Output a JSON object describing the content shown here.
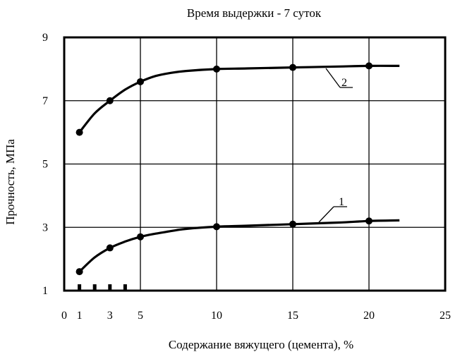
{
  "chart_data": {
    "type": "line",
    "title": "Время выдержки - 7 суток",
    "xlabel": "Содержание вяжущего (цемента),  %",
    "ylabel": "Прочность, МПа",
    "xlim": [
      0,
      25
    ],
    "ylim": [
      1,
      9
    ],
    "grid": true,
    "x_ticks": [
      0,
      1,
      3,
      5,
      10,
      15,
      20,
      25
    ],
    "y_ticks": [
      1,
      3,
      5,
      7,
      9
    ],
    "vertical_gridlines_at": [
      5,
      10,
      15,
      20
    ],
    "horizontal_gridlines_at": [
      3,
      5,
      7
    ],
    "axis_minor_ticks_at": [
      1,
      2,
      3,
      4
    ],
    "series": [
      {
        "name": "2",
        "points_x": [
          1,
          3,
          5,
          10,
          15,
          20
        ],
        "points_y": [
          6.0,
          7.0,
          7.6,
          8.0,
          8.05,
          8.1
        ],
        "curve_x": [
          1,
          2,
          3,
          4,
          5,
          6,
          7,
          8,
          10,
          12,
          15,
          18,
          20,
          22
        ],
        "curve_y": [
          6.0,
          6.6,
          7.0,
          7.35,
          7.6,
          7.78,
          7.88,
          7.94,
          8.0,
          8.02,
          8.05,
          8.08,
          8.1,
          8.1
        ]
      },
      {
        "name": "1",
        "points_x": [
          1,
          3,
          5,
          10,
          15,
          20
        ],
        "points_y": [
          1.6,
          2.35,
          2.7,
          3.02,
          3.1,
          3.2
        ],
        "curve_x": [
          1,
          2,
          3,
          4,
          5,
          6,
          7,
          8,
          10,
          12,
          15,
          18,
          20,
          22
        ],
        "curve_y": [
          1.6,
          2.05,
          2.35,
          2.55,
          2.7,
          2.8,
          2.88,
          2.95,
          3.02,
          3.05,
          3.1,
          3.15,
          3.2,
          3.22
        ]
      }
    ]
  }
}
